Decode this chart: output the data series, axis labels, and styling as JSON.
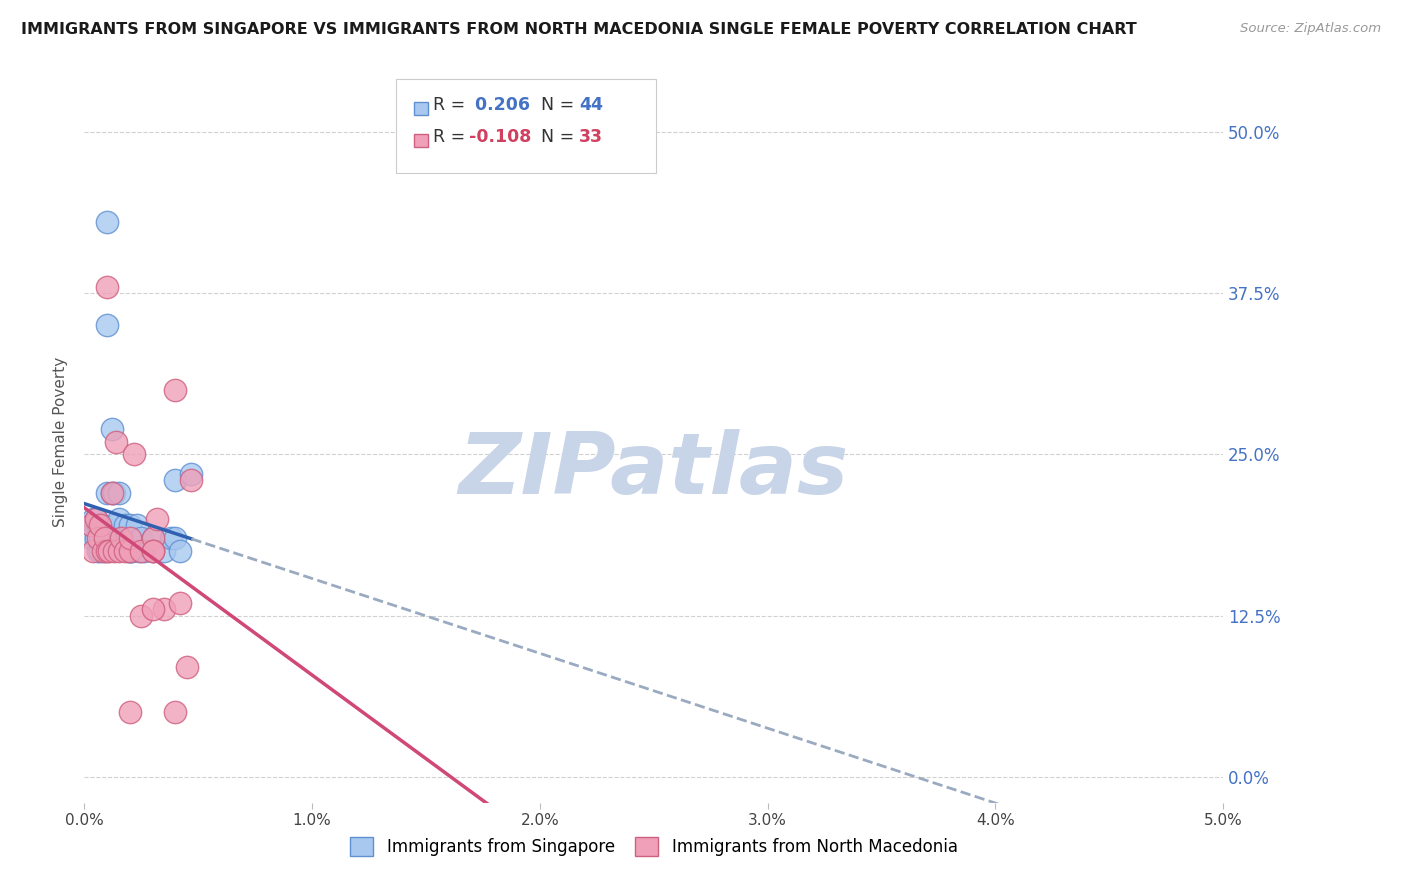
{
  "title": "IMMIGRANTS FROM SINGAPORE VS IMMIGRANTS FROM NORTH MACEDONIA SINGLE FEMALE POVERTY CORRELATION CHART",
  "source": "Source: ZipAtlas.com",
  "ylabel": "Single Female Poverty",
  "xlim": [
    0.0,
    0.05
  ],
  "ylim": [
    -0.02,
    0.54
  ],
  "xticks": [
    0.0,
    0.01,
    0.02,
    0.03,
    0.04,
    0.05
  ],
  "xticklabels": [
    "0.0%",
    "1.0%",
    "2.0%",
    "3.0%",
    "4.0%",
    "5.0%"
  ],
  "yticks": [
    0.0,
    0.125,
    0.25,
    0.375,
    0.5
  ],
  "yticklabels_right": [
    "0.0%",
    "12.5%",
    "25.0%",
    "37.5%",
    "50.0%"
  ],
  "R_singapore": 0.206,
  "N_singapore": 44,
  "R_macedonia": -0.108,
  "N_macedonia": 33,
  "color_singapore_face": "#A8C8F0",
  "color_singapore_edge": "#6090D0",
  "color_macedonia_face": "#F0A0B8",
  "color_macedonia_edge": "#D06080",
  "color_blue_text": "#4472C4",
  "color_pink_text": "#D04060",
  "color_blue_line": "#3060B0",
  "color_pink_line": "#D04878",
  "color_dashed": "#9AAAC0",
  "background_color": "#FFFFFF",
  "grid_color": "#CCCCCC",
  "watermark_color": "#C8D4E8",
  "singapore_x": [
    0.0003,
    0.0003,
    0.0004,
    0.0005,
    0.0005,
    0.0006,
    0.0006,
    0.0007,
    0.0007,
    0.0008,
    0.0009,
    0.001,
    0.001,
    0.001,
    0.0011,
    0.0012,
    0.0012,
    0.0013,
    0.0013,
    0.0014,
    0.0015,
    0.0015,
    0.0016,
    0.0017,
    0.0018,
    0.0018,
    0.0019,
    0.002,
    0.002,
    0.002,
    0.0021,
    0.0022,
    0.0023,
    0.0024,
    0.0025,
    0.0026,
    0.003,
    0.003,
    0.0035,
    0.0038,
    0.004,
    0.004,
    0.0042,
    0.0047
  ],
  "singapore_y": [
    0.195,
    0.185,
    0.2,
    0.2,
    0.185,
    0.195,
    0.175,
    0.185,
    0.175,
    0.195,
    0.175,
    0.43,
    0.35,
    0.22,
    0.185,
    0.27,
    0.22,
    0.22,
    0.185,
    0.195,
    0.22,
    0.2,
    0.185,
    0.185,
    0.195,
    0.185,
    0.175,
    0.195,
    0.175,
    0.175,
    0.175,
    0.185,
    0.195,
    0.175,
    0.185,
    0.175,
    0.185,
    0.175,
    0.175,
    0.185,
    0.23,
    0.185,
    0.175,
    0.235
  ],
  "macedonia_x": [
    0.0003,
    0.0004,
    0.0005,
    0.0006,
    0.0007,
    0.0008,
    0.0009,
    0.001,
    0.001,
    0.0011,
    0.0012,
    0.0013,
    0.0014,
    0.0015,
    0.0016,
    0.0018,
    0.002,
    0.002,
    0.0022,
    0.0025,
    0.003,
    0.003,
    0.0032,
    0.0035,
    0.004,
    0.0042,
    0.0045,
    0.0047,
    0.0025,
    0.002,
    0.003,
    0.003,
    0.004
  ],
  "macedonia_y": [
    0.195,
    0.175,
    0.2,
    0.185,
    0.195,
    0.175,
    0.185,
    0.38,
    0.175,
    0.175,
    0.22,
    0.175,
    0.26,
    0.175,
    0.185,
    0.175,
    0.175,
    0.185,
    0.25,
    0.175,
    0.185,
    0.175,
    0.2,
    0.13,
    0.3,
    0.135,
    0.085,
    0.23,
    0.125,
    0.05,
    0.13,
    0.175,
    0.05
  ]
}
